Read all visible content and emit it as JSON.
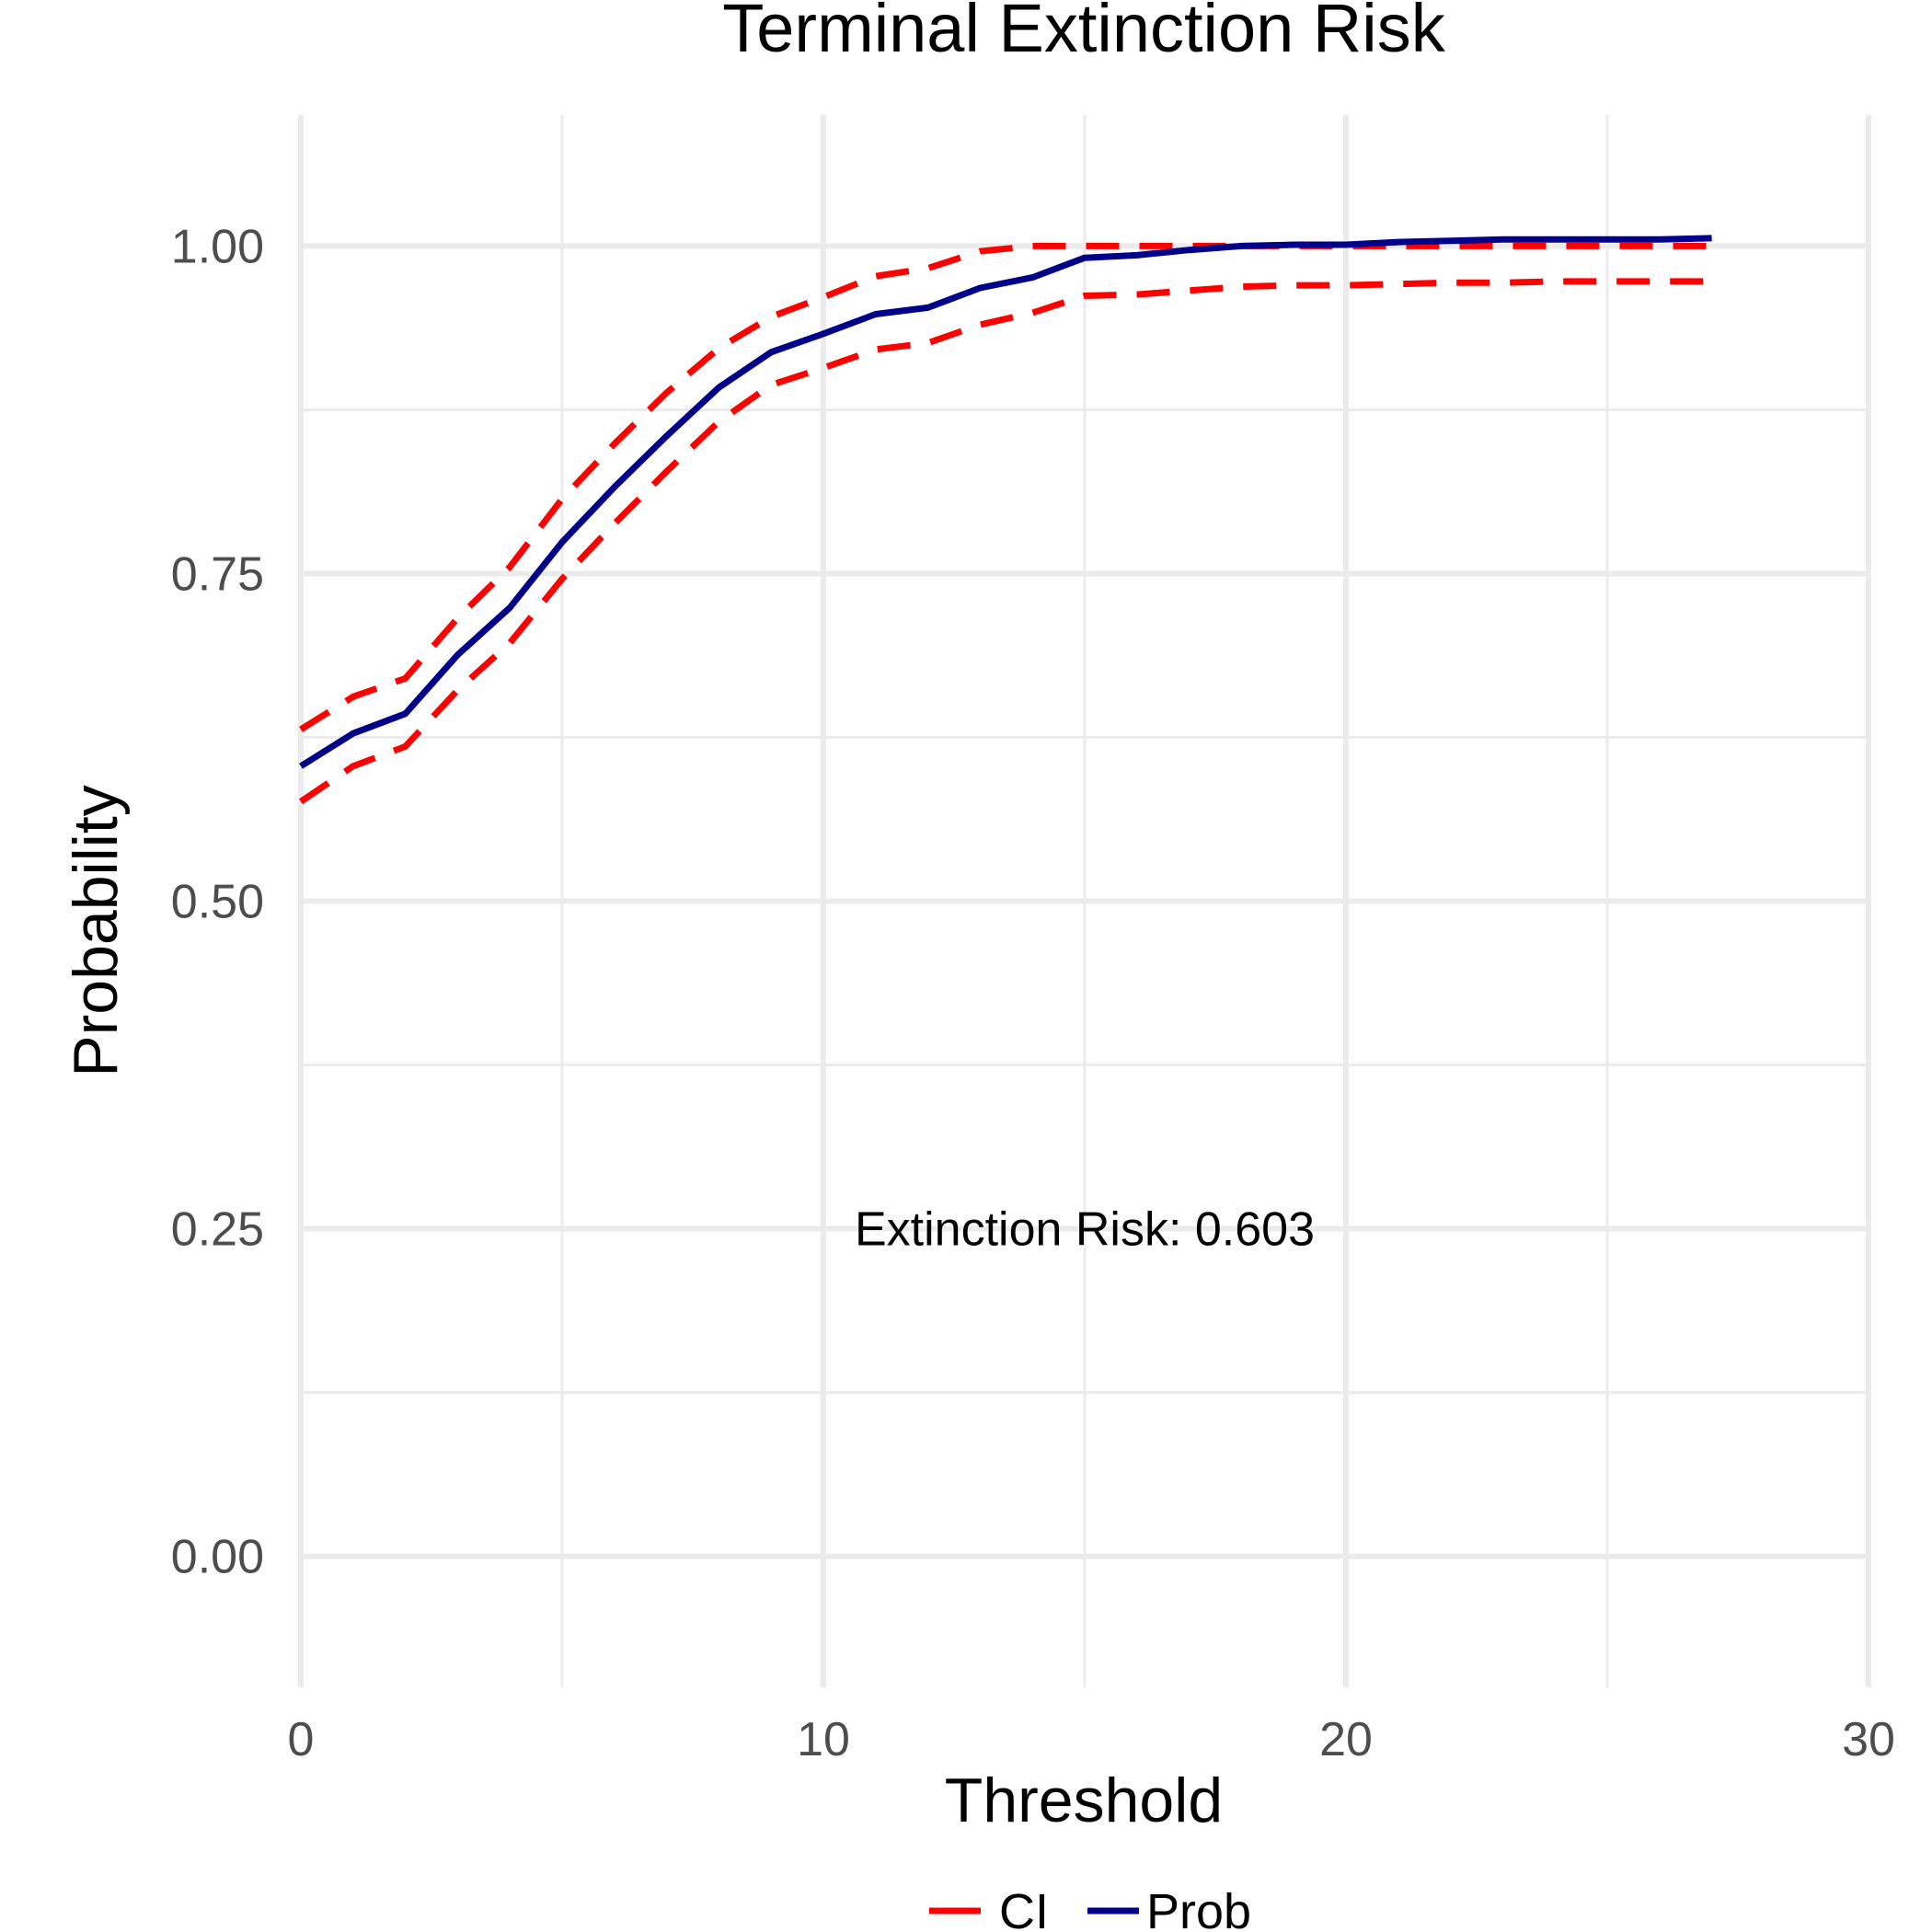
{
  "chart_data": {
    "type": "line",
    "title": "Terminal Extinction Risk",
    "xlabel": "Threshold",
    "ylabel": "Probability",
    "xlim": [
      0,
      30
    ],
    "ylim": [
      -0.1,
      1.1
    ],
    "x_ticks": [
      0,
      10,
      20,
      30
    ],
    "x_tick_labels": [
      "0",
      "10",
      "20",
      "30"
    ],
    "y_ticks": [
      0,
      0.25,
      0.5,
      0.75,
      1.0
    ],
    "y_tick_labels": [
      "0.00",
      "0.25",
      "0.50",
      "0.75",
      "1.00"
    ],
    "grid": true,
    "legend_position": "bottom",
    "legend": [
      {
        "label": "CI",
        "color": "#ff0000",
        "dashed": true
      },
      {
        "label": "Prob",
        "color": "#00008b",
        "dashed": false
      }
    ],
    "annotation": {
      "text": "Extinction Risk: 0.603",
      "x": 15,
      "y": 0.25
    },
    "x": [
      0,
      1,
      2,
      3,
      4,
      5,
      6,
      7,
      8,
      9,
      10,
      11,
      12,
      13,
      14,
      15,
      16,
      17,
      18,
      19,
      20,
      21,
      22,
      23,
      24,
      25,
      26,
      27
    ],
    "series": [
      {
        "name": "Prob",
        "color": "#00008b",
        "dashed": false,
        "values": [
          0.603,
          0.628,
          0.643,
          0.688,
          0.724,
          0.774,
          0.816,
          0.855,
          0.892,
          0.919,
          0.933,
          0.948,
          0.953,
          0.968,
          0.976,
          0.991,
          0.993,
          0.997,
          1.0,
          1.001,
          1.001,
          1.003,
          1.004,
          1.005,
          1.005,
          1.005,
          1.005,
          1.006
        ]
      },
      {
        "name": "CI",
        "color": "#ff0000",
        "dashed": true,
        "values": [
          0.631,
          0.656,
          0.67,
          0.716,
          0.755,
          0.807,
          0.849,
          0.888,
          0.922,
          0.946,
          0.961,
          0.977,
          0.983,
          0.996,
          1.0,
          1.0,
          1.0,
          1.0,
          1.0,
          1.0,
          1.0,
          1.0,
          1.0,
          1.0,
          1.0,
          1.0,
          1.0,
          1.0
        ]
      },
      {
        "name": "CI",
        "color": "#ff0000",
        "dashed": true,
        "values": [
          0.576,
          0.603,
          0.618,
          0.661,
          0.697,
          0.746,
          0.788,
          0.828,
          0.866,
          0.894,
          0.907,
          0.921,
          0.926,
          0.94,
          0.949,
          0.962,
          0.963,
          0.966,
          0.969,
          0.97,
          0.97,
          0.971,
          0.972,
          0.972,
          0.973,
          0.973,
          0.973,
          0.973
        ]
      }
    ]
  }
}
